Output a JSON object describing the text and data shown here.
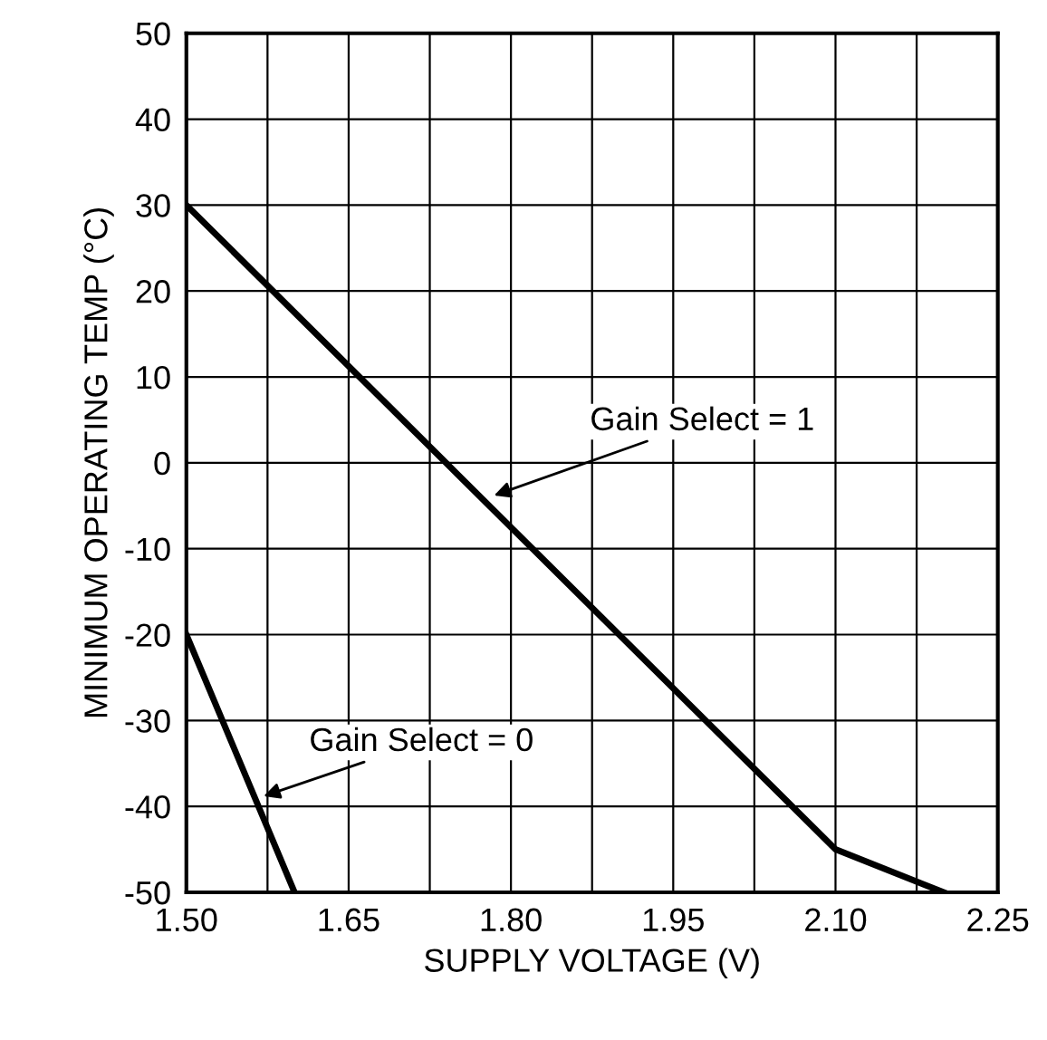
{
  "chart_data": {
    "type": "line",
    "xlabel": "SUPPLY VOLTAGE (V)",
    "ylabel": "MINIMUM OPERATING TEMP (°C)",
    "series": [
      {
        "x": [
          1.5,
          2.1,
          2.2
        ],
        "values": [
          30,
          -45,
          -50
        ],
        "color": "#000000"
      },
      {
        "x": [
          1.5,
          1.6
        ],
        "values": [
          -20,
          -50
        ],
        "color": "#000000"
      }
    ],
    "annotations": [
      {
        "text": "Gain Select = 1",
        "x": 1.78,
        "y": -4
      },
      {
        "text": "Gain Select = 0",
        "x": 1.567,
        "y": -39
      }
    ],
    "xlim": [
      1.5,
      2.25
    ],
    "xticks": [
      {
        "value": 1.5,
        "label": "1.50"
      },
      {
        "value": 1.575,
        "label": null
      },
      {
        "value": 1.65,
        "label": "1.65"
      },
      {
        "value": 1.725,
        "label": null
      },
      {
        "value": 1.8,
        "label": "1.80"
      },
      {
        "value": 1.875,
        "label": null
      },
      {
        "value": 1.95,
        "label": "1.95"
      },
      {
        "value": 2.025,
        "label": null
      },
      {
        "value": 2.1,
        "label": "2.10"
      },
      {
        "value": 2.175,
        "label": null
      },
      {
        "value": 2.25,
        "label": "2.25"
      }
    ],
    "ylim": [
      -50,
      50
    ],
    "yticks": [
      -50,
      -40,
      -30,
      -20,
      -10,
      0,
      10,
      20,
      30,
      40,
      50
    ],
    "grid": true,
    "legend": false,
    "marker": "none",
    "line_style": "solid"
  }
}
